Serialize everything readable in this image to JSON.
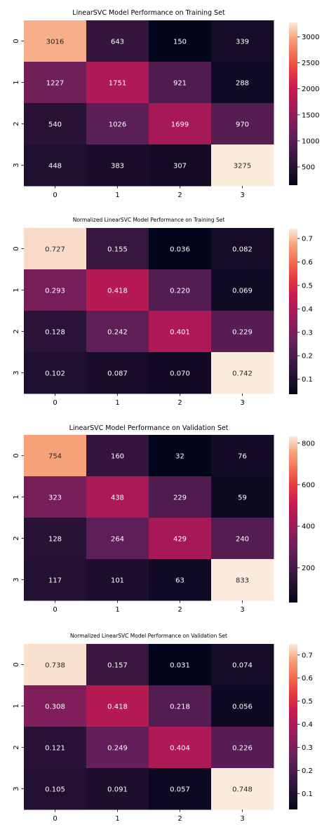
{
  "figure": {
    "background": "#ffffff",
    "colormap": "rocket"
  },
  "chart_data": [
    {
      "type": "heatmap",
      "title": "LinearSVC Model Performance on Training Set",
      "x_categories": [
        "0",
        "1",
        "2",
        "3"
      ],
      "y_categories": [
        "0",
        "1",
        "2",
        "3"
      ],
      "values": [
        [
          3016,
          643,
          150,
          339
        ],
        [
          1227,
          1751,
          921,
          288
        ],
        [
          540,
          1026,
          1699,
          970
        ],
        [
          448,
          383,
          307,
          3275
        ]
      ],
      "value_format": "int",
      "vmin": 150,
      "vmax": 3275,
      "colorbar_ticks": [
        "500",
        "1000",
        "1500",
        "2000",
        "2500",
        "3000"
      ]
    },
    {
      "type": "heatmap",
      "title": "Normalized LinearSVC Model Performance on Training Set",
      "x_categories": [
        "0",
        "1",
        "2",
        "3"
      ],
      "y_categories": [
        "0",
        "1",
        "2",
        "3"
      ],
      "values": [
        [
          0.727,
          0.155,
          0.036,
          0.082
        ],
        [
          0.293,
          0.418,
          0.22,
          0.069
        ],
        [
          0.128,
          0.242,
          0.401,
          0.229
        ],
        [
          0.102,
          0.087,
          0.07,
          0.742
        ]
      ],
      "value_format": "3f",
      "vmin": 0.036,
      "vmax": 0.742,
      "colorbar_ticks": [
        "0.1",
        "0.2",
        "0.3",
        "0.4",
        "0.5",
        "0.6",
        "0.7"
      ]
    },
    {
      "type": "heatmap",
      "title": "LinearSVC Model Performance on Validation Set",
      "x_categories": [
        "0",
        "1",
        "2",
        "3"
      ],
      "y_categories": [
        "0",
        "1",
        "2",
        "3"
      ],
      "values": [
        [
          754,
          160,
          32,
          76
        ],
        [
          323,
          438,
          229,
          59
        ],
        [
          128,
          264,
          429,
          240
        ],
        [
          117,
          101,
          63,
          833
        ]
      ],
      "value_format": "int",
      "vmin": 32,
      "vmax": 833,
      "colorbar_ticks": [
        "200",
        "400",
        "600",
        "800"
      ]
    },
    {
      "type": "heatmap",
      "title": "Normalized LinearSVC Model Performance on Validation Set",
      "x_categories": [
        "0",
        "1",
        "2",
        "3"
      ],
      "y_categories": [
        "0",
        "1",
        "2",
        "3"
      ],
      "values": [
        [
          0.738,
          0.157,
          0.031,
          0.074
        ],
        [
          0.308,
          0.418,
          0.218,
          0.056
        ],
        [
          0.121,
          0.249,
          0.404,
          0.226
        ],
        [
          0.105,
          0.091,
          0.057,
          0.748
        ]
      ],
      "value_format": "3f",
      "vmin": 0.031,
      "vmax": 0.748,
      "colorbar_ticks": [
        "0.1",
        "0.2",
        "0.3",
        "0.4",
        "0.5",
        "0.6",
        "0.7"
      ]
    }
  ]
}
